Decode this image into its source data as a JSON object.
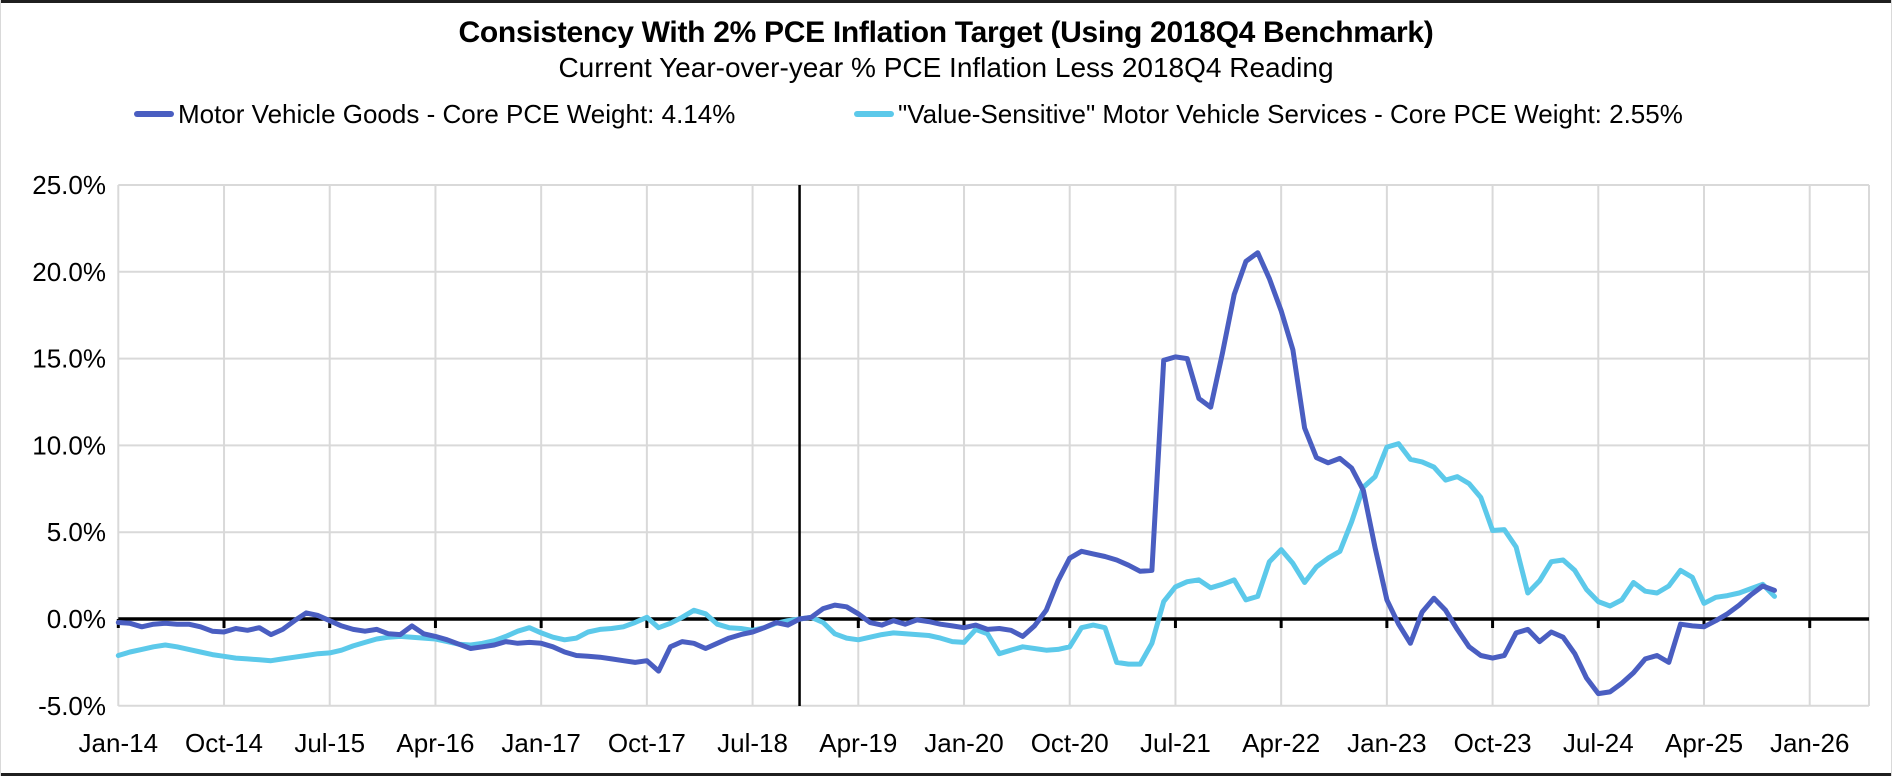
{
  "chart_data": {
    "type": "line",
    "title": "Consistency With 2% PCE Inflation Target (Using 2018Q4 Benchmark)",
    "subtitle": "Current Year-over-year % PCE Inflation Less 2018Q4 Reading",
    "unit": "%",
    "frequency": "monthly",
    "x_start_month": "Jan-14",
    "x_end_month": "Oct-25",
    "x_tick_labels": [
      "Jan-14",
      "Oct-14",
      "Jul-15",
      "Apr-16",
      "Jan-17",
      "Oct-17",
      "Jul-18",
      "Apr-19",
      "Jan-20",
      "Oct-20",
      "Jul-21",
      "Apr-22",
      "Jan-23",
      "Oct-23",
      "Jul-24",
      "Apr-25",
      "Jan-26"
    ],
    "x_tick_month_indices": [
      0,
      9,
      18,
      27,
      36,
      45,
      54,
      63,
      72,
      81,
      90,
      99,
      108,
      117,
      126,
      135,
      144
    ],
    "y_ticks": [
      {
        "label": "25.0%",
        "value": 25
      },
      {
        "label": "20.0%",
        "value": 20
      },
      {
        "label": "15.0%",
        "value": 15
      },
      {
        "label": "10.0%",
        "value": 10
      },
      {
        "label": "5.0%",
        "value": 5
      },
      {
        "label": "0.0%",
        "value": 0
      },
      {
        "label": "-5.0%",
        "value": -5
      }
    ],
    "ylim": [
      -5,
      25
    ],
    "gridlines": true,
    "legend_position": "top",
    "zero_axis": true,
    "benchmark_vline": {
      "month": "Nov-18",
      "month_index": 58,
      "note": "2018Q4 benchmark"
    },
    "series": [
      {
        "name": "Motor Vehicle Goods - Core PCE Weight: 4.14%",
        "color": "#4a5ec1",
        "values": [
          -0.2,
          -0.25,
          -0.45,
          -0.3,
          -0.25,
          -0.3,
          -0.3,
          -0.45,
          -0.7,
          -0.75,
          -0.55,
          -0.65,
          -0.5,
          -0.9,
          -0.6,
          -0.1,
          0.35,
          0.2,
          -0.1,
          -0.4,
          -0.6,
          -0.7,
          -0.6,
          -0.85,
          -0.9,
          -0.4,
          -0.85,
          -1.0,
          -1.2,
          -1.45,
          -1.7,
          -1.6,
          -1.5,
          -1.3,
          -1.4,
          -1.35,
          -1.4,
          -1.6,
          -1.9,
          -2.1,
          -2.15,
          -2.2,
          -2.3,
          -2.4,
          -2.5,
          -2.4,
          -3.0,
          -1.6,
          -1.3,
          -1.4,
          -1.7,
          -1.4,
          -1.1,
          -0.9,
          -0.75,
          -0.5,
          -0.2,
          -0.35,
          0.0,
          0.1,
          0.6,
          0.8,
          0.7,
          0.3,
          -0.2,
          -0.35,
          -0.1,
          -0.3,
          -0.05,
          -0.15,
          -0.3,
          -0.4,
          -0.5,
          -0.35,
          -0.6,
          -0.55,
          -0.65,
          -1.0,
          -0.4,
          0.5,
          2.2,
          3.5,
          3.9,
          3.75,
          3.6,
          3.4,
          3.1,
          2.75,
          2.8,
          14.9,
          15.1,
          15.0,
          12.7,
          12.2,
          15.3,
          18.7,
          20.6,
          21.1,
          19.6,
          17.75,
          15.5,
          11.0,
          9.3,
          9.0,
          9.25,
          8.7,
          7.4,
          4.1,
          1.1,
          -0.3,
          -1.4,
          0.4,
          1.2,
          0.5,
          -0.6,
          -1.6,
          -2.1,
          -2.25,
          -2.1,
          -0.8,
          -0.6,
          -1.3,
          -0.75,
          -1.05,
          -2.0,
          -3.4,
          -4.3,
          -4.2,
          -3.7,
          -3.1,
          -2.3,
          -2.1,
          -2.5,
          -0.3,
          -0.4,
          -0.45,
          -0.1,
          0.3,
          0.8,
          1.4,
          1.9,
          1.65
        ]
      },
      {
        "name": "\"Value-Sensitive\" Motor Vehicle Services - Core PCE Weight: 2.55%",
        "color": "#5cc9ea",
        "values": [
          -2.1,
          -1.9,
          -1.75,
          -1.6,
          -1.5,
          -1.6,
          -1.75,
          -1.9,
          -2.05,
          -2.15,
          -2.25,
          -2.3,
          -2.35,
          -2.4,
          -2.3,
          -2.2,
          -2.1,
          -2.0,
          -1.95,
          -1.8,
          -1.55,
          -1.35,
          -1.15,
          -1.05,
          -1.0,
          -1.05,
          -1.1,
          -1.15,
          -1.3,
          -1.45,
          -1.5,
          -1.4,
          -1.25,
          -1.0,
          -0.7,
          -0.5,
          -0.8,
          -1.05,
          -1.2,
          -1.1,
          -0.75,
          -0.6,
          -0.55,
          -0.45,
          -0.2,
          0.1,
          -0.5,
          -0.25,
          0.1,
          0.5,
          0.3,
          -0.3,
          -0.5,
          -0.55,
          -0.65,
          -0.5,
          -0.25,
          -0.1,
          0.0,
          0.1,
          -0.2,
          -0.85,
          -1.1,
          -1.2,
          -1.05,
          -0.9,
          -0.8,
          -0.85,
          -0.9,
          -0.95,
          -1.1,
          -1.3,
          -1.35,
          -0.6,
          -0.85,
          -2.0,
          -1.8,
          -1.6,
          -1.7,
          -1.8,
          -1.75,
          -1.6,
          -0.5,
          -0.35,
          -0.5,
          -2.5,
          -2.6,
          -2.6,
          -1.4,
          1.0,
          1.85,
          2.15,
          2.25,
          1.8,
          2.0,
          2.25,
          1.1,
          1.3,
          3.3,
          4.0,
          3.2,
          2.1,
          3.0,
          3.5,
          3.9,
          5.6,
          7.6,
          8.2,
          9.9,
          10.1,
          9.2,
          9.05,
          8.75,
          8.0,
          8.2,
          7.8,
          7.0,
          5.1,
          5.15,
          4.15,
          1.5,
          2.2,
          3.3,
          3.4,
          2.8,
          1.7,
          1.0,
          0.75,
          1.1,
          2.1,
          1.6,
          1.5,
          1.9,
          2.8,
          2.4,
          0.9,
          1.25,
          1.35,
          1.5,
          1.75,
          2.0,
          1.3
        ]
      }
    ]
  }
}
